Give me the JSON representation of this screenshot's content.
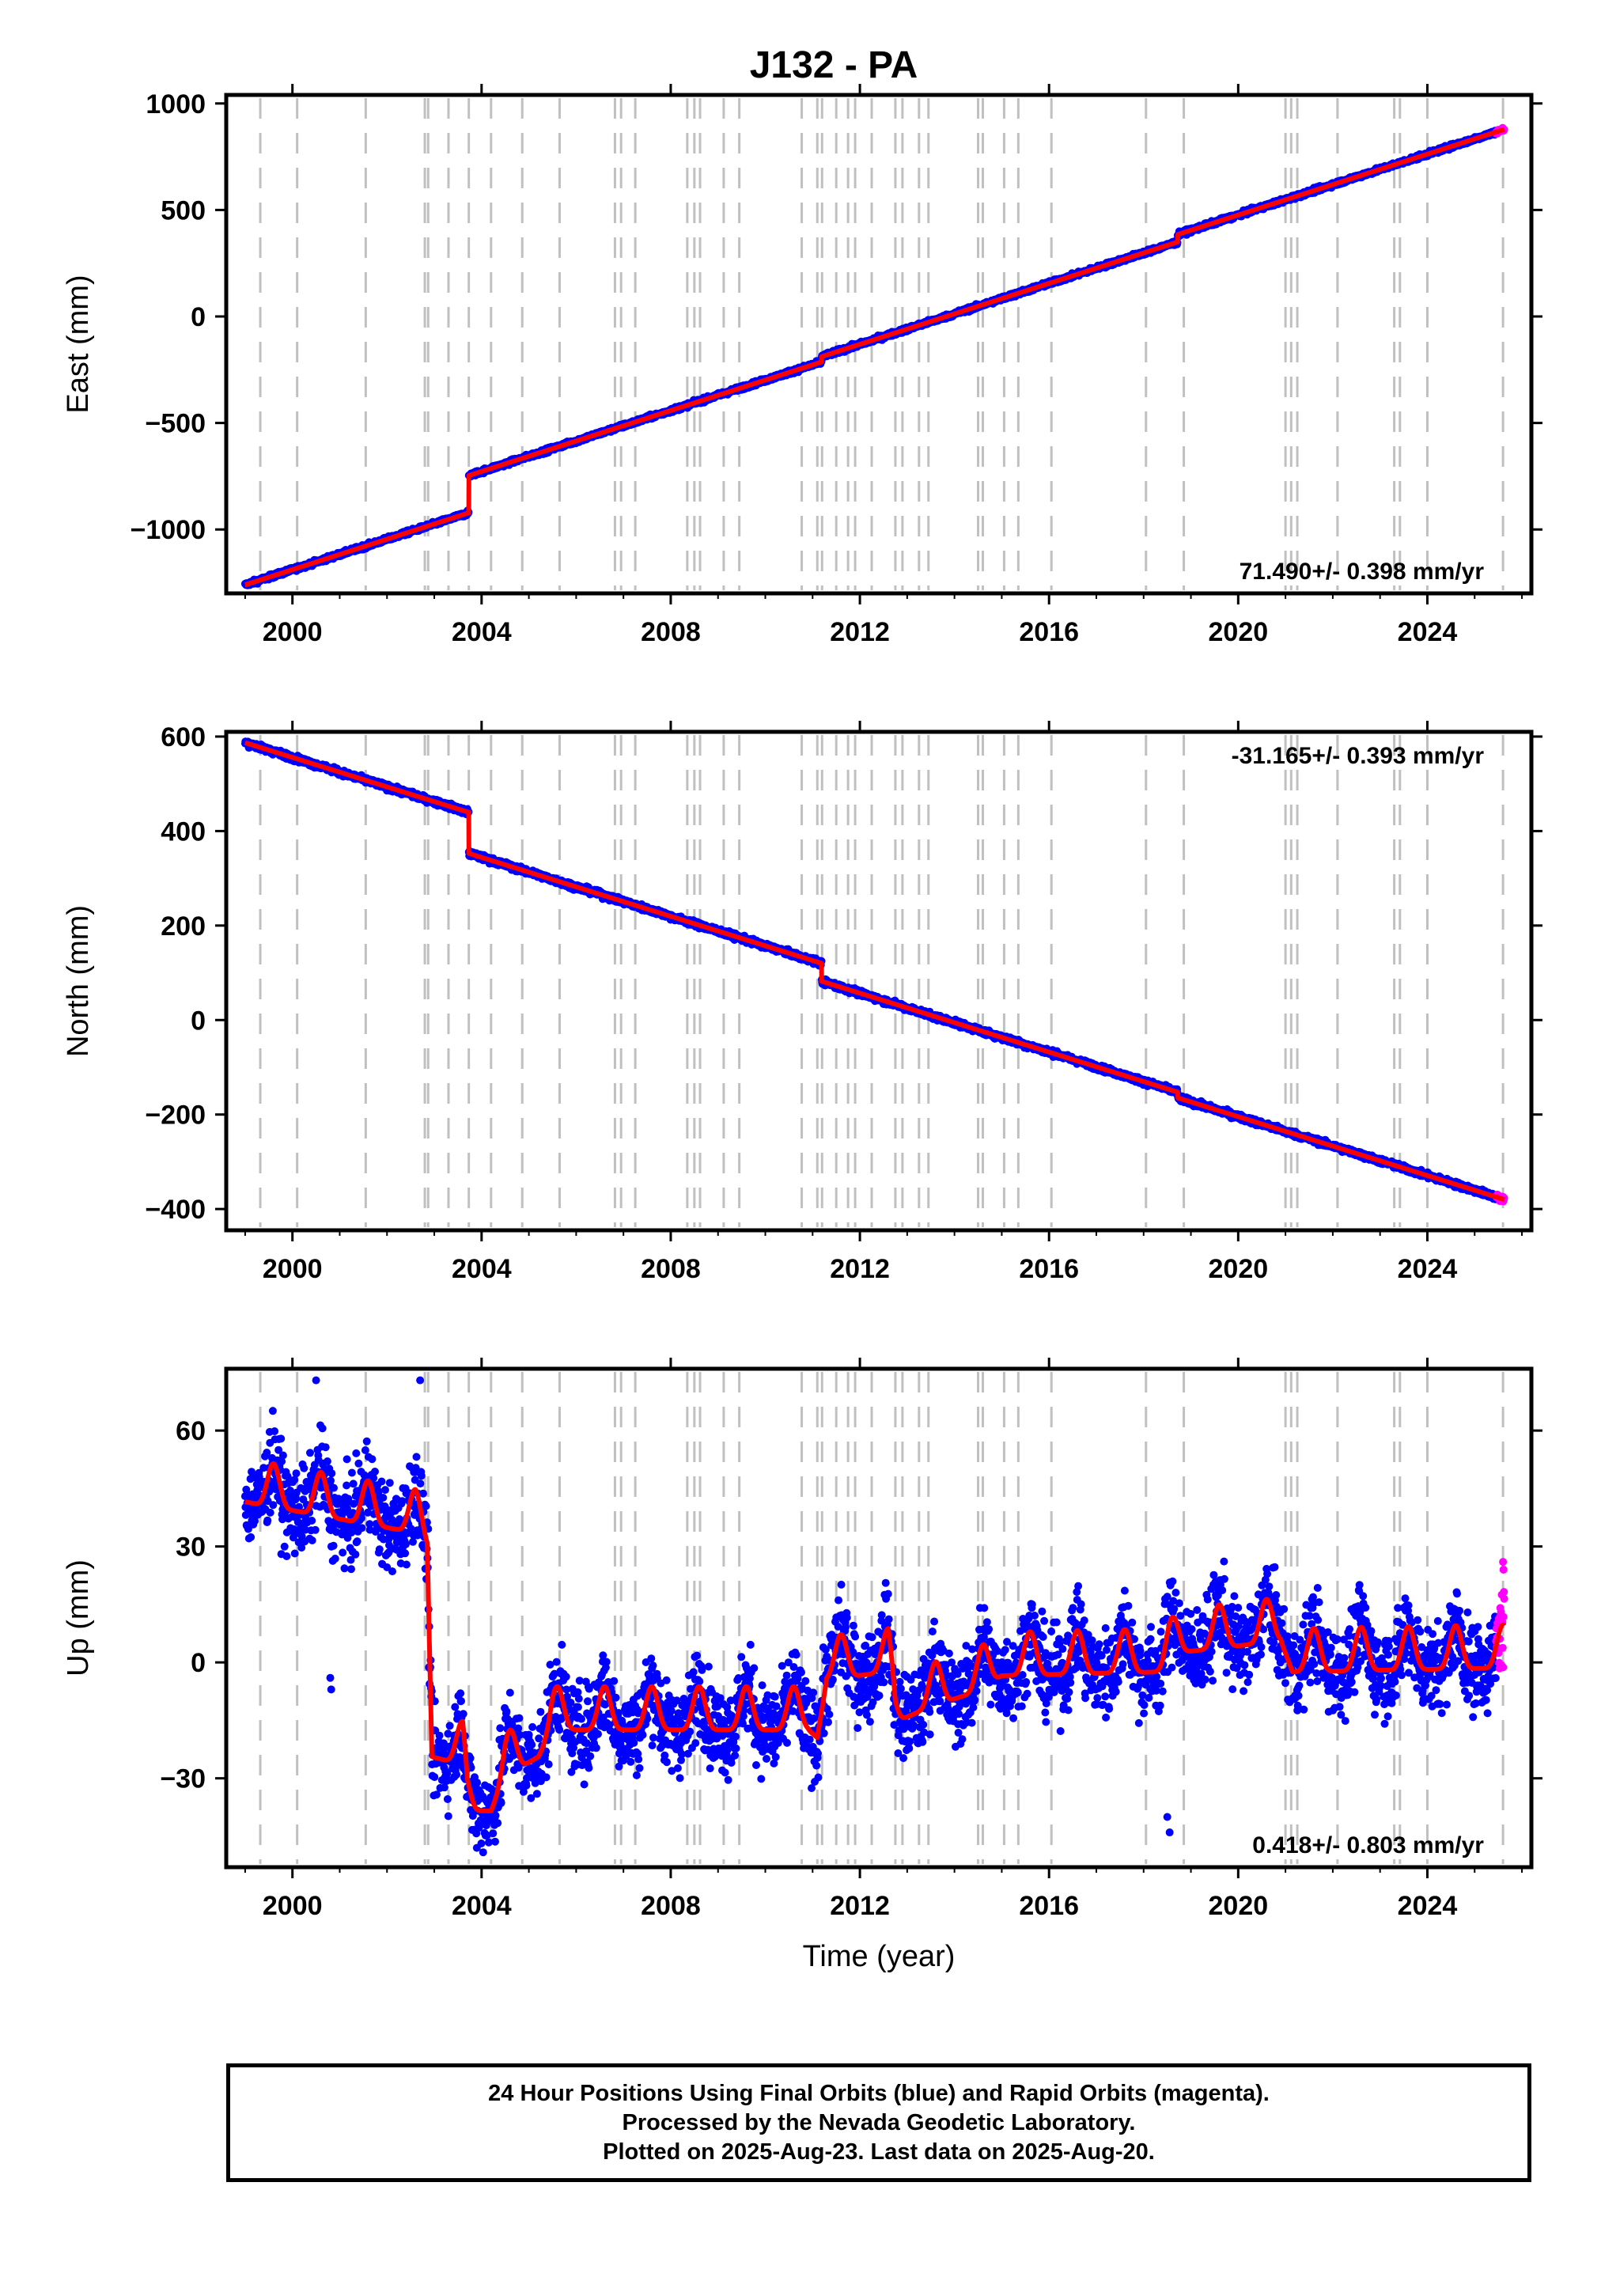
{
  "title": "J132 - PA",
  "footer": {
    "line1": "24 Hour Positions Using Final Orbits (blue) and Rapid Orbits (magenta).",
    "line2": "Processed by the Nevada Geodetic Laboratory.",
    "line3": "Plotted on 2025-Aug-23. Last data on 2025-Aug-20."
  },
  "colors": {
    "final": "#0000ff",
    "rapid": "#ff00ff",
    "model": "#ff0000",
    "event_lines": "#c0c0c0"
  },
  "chart_data": [
    {
      "type": "scatter",
      "ylabel": "East (mm)",
      "xlabel": "",
      "xlim": [
        1998.6,
        2026.2
      ],
      "ylim": [
        -1300,
        1040
      ],
      "xticks": [
        2000,
        2004,
        2008,
        2012,
        2016,
        2020,
        2024
      ],
      "xtick_labels": [
        "2000",
        "2004",
        "2008",
        "2012",
        "2016",
        "2020",
        "2024"
      ],
      "yticks": [
        -1000,
        -500,
        0,
        500,
        1000
      ],
      "ytick_labels": [
        "−1000",
        "−500",
        "0",
        "500",
        "1000"
      ],
      "rate_text": "71.490+/- 0.398 mm/yr",
      "rate_position": "bottom-right",
      "time_range": [
        1999.0,
        2025.63
      ],
      "rapid_start": 2025.45,
      "trend": {
        "slope": 71.49,
        "at_time": 1999.0,
        "value": -1260
      },
      "steps": [
        {
          "time": 2003.73,
          "offset": 175
        },
        {
          "time": 2011.19,
          "offset": 25
        },
        {
          "time": 2018.72,
          "offset": 35
        }
      ],
      "seasonal": [],
      "noise": 5
    },
    {
      "type": "scatter",
      "ylabel": "North (mm)",
      "xlabel": "",
      "xlim": [
        1998.6,
        2026.2
      ],
      "ylim": [
        -445,
        610
      ],
      "xticks": [
        2000,
        2004,
        2008,
        2012,
        2016,
        2020,
        2024
      ],
      "xtick_labels": [
        "2000",
        "2004",
        "2008",
        "2012",
        "2016",
        "2020",
        "2024"
      ],
      "yticks": [
        -400,
        -200,
        0,
        200,
        400,
        600
      ],
      "ytick_labels": [
        "−400",
        "−200",
        "0",
        "200",
        "400",
        "600"
      ],
      "rate_text": "-31.165+/- 0.393 mm/yr",
      "rate_position": "top-right",
      "time_range": [
        1999.0,
        2025.63
      ],
      "rapid_start": 2025.45,
      "trend": {
        "slope": -31.165,
        "at_time": 1999.0,
        "value": 587
      },
      "steps": [
        {
          "time": 2003.73,
          "offset": -87
        },
        {
          "time": 2011.19,
          "offset": -38
        },
        {
          "time": 2018.72,
          "offset": -12
        }
      ],
      "seasonal": [],
      "noise": 3
    },
    {
      "type": "scatter",
      "ylabel": "Up (mm)",
      "xlabel": "Time (year)",
      "xlim": [
        1998.6,
        2026.2
      ],
      "ylim": [
        -53,
        76
      ],
      "xticks": [
        2000,
        2004,
        2008,
        2012,
        2016,
        2020,
        2024
      ],
      "xtick_labels": [
        "2000",
        "2004",
        "2008",
        "2012",
        "2016",
        "2020",
        "2024"
      ],
      "yticks": [
        -30,
        0,
        30,
        60
      ],
      "ytick_labels": [
        "−30",
        "0",
        "30",
        "60"
      ],
      "rate_text": "0.418+/- 0.803 mm/yr",
      "rate_position": "bottom-right",
      "time_range": [
        1999.0,
        2025.63
      ],
      "rapid_start": 2025.45,
      "level_path": [
        [
          1999.0,
          44
        ],
        [
          2002.6,
          36
        ],
        [
          2002.85,
          32
        ],
        [
          2002.95,
          -22
        ],
        [
          2003.6,
          -24
        ],
        [
          2003.7,
          -36
        ],
        [
          2004.2,
          -36
        ],
        [
          2004.5,
          -27
        ],
        [
          2005.2,
          -22
        ],
        [
          2005.5,
          -15
        ],
        [
          2010.9,
          -15
        ],
        [
          2011.1,
          -17
        ],
        [
          2011.3,
          -2
        ],
        [
          2012.6,
          0
        ],
        [
          2012.75,
          -13
        ],
        [
          2013.5,
          -9
        ],
        [
          2014.5,
          -5
        ],
        [
          2015.0,
          -1
        ],
        [
          2018.4,
          0
        ],
        [
          2018.75,
          5
        ],
        [
          2020.9,
          8
        ],
        [
          2021.15,
          0
        ],
        [
          2025.63,
          1
        ]
      ],
      "seasonal": [
        {
          "period": 1.0,
          "peak": 0.6,
          "amplitude": 7
        }
      ],
      "noise": 5.5,
      "outliers": [
        [
          2000.8,
          -4
        ],
        [
          2000.82,
          -7
        ],
        [
          2018.5,
          -40
        ],
        [
          2018.55,
          -44
        ],
        [
          2003.9,
          -48
        ],
        [
          2000.5,
          73
        ],
        [
          2002.7,
          73
        ],
        [
          2025.6,
          26
        ],
        [
          2025.61,
          24
        ]
      ]
    }
  ],
  "event_lines": [
    1999.32,
    2000.1,
    2001.55,
    2002.8,
    2002.87,
    2003.3,
    2003.73,
    2004.2,
    2004.86,
    2005.65,
    2006.82,
    2006.95,
    2007.25,
    2008.35,
    2008.5,
    2008.62,
    2009.12,
    2009.45,
    2010.77,
    2011.1,
    2011.2,
    2011.5,
    2011.75,
    2011.9,
    2012.25,
    2012.75,
    2012.9,
    2013.25,
    2013.45,
    2014.5,
    2014.6,
    2015.05,
    2015.35,
    2016.05,
    2018.05,
    2018.85,
    2021.0,
    2021.12,
    2021.25,
    2022.1,
    2023.3,
    2023.42,
    2024.0,
    2025.6
  ]
}
